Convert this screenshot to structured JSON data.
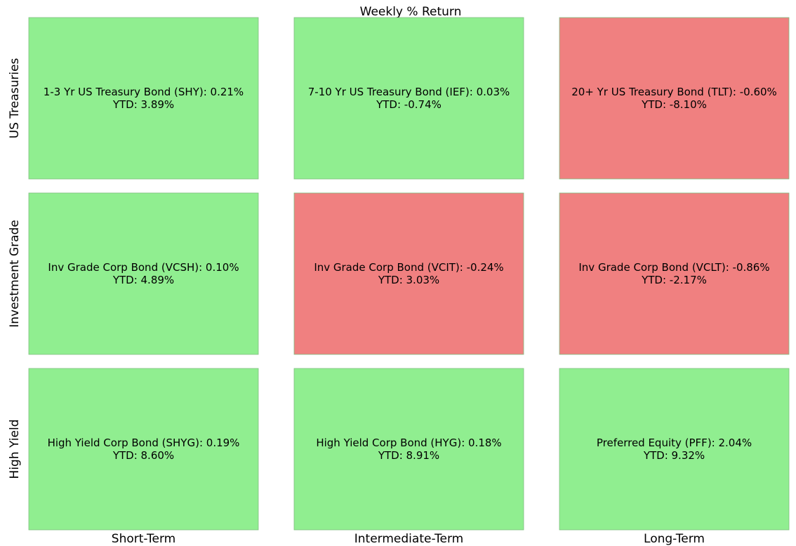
{
  "chart_data": {
    "type": "heatmap",
    "title": "Weekly % Return",
    "columns": [
      "Short-Term",
      "Intermediate-Term",
      "Long-Term"
    ],
    "rows": [
      "US Treasuries",
      "Investment Grade",
      "High Yield"
    ],
    "cells": [
      [
        {
          "label": "1-3 Yr US Treasury Bond (SHY): 0.21%",
          "ytd": "YTD: 3.89%",
          "weekly_return": 0.21,
          "ytd_return": 3.89
        },
        {
          "label": "7-10 Yr US Treasury Bond (IEF): 0.03%",
          "ytd": "YTD: -0.74%",
          "weekly_return": 0.03,
          "ytd_return": -0.74
        },
        {
          "label": "20+ Yr US Treasury Bond (TLT): -0.60%",
          "ytd": "YTD: -8.10%",
          "weekly_return": -0.6,
          "ytd_return": -8.1
        }
      ],
      [
        {
          "label": "Inv Grade Corp Bond (VCSH): 0.10%",
          "ytd": "YTD: 4.89%",
          "weekly_return": 0.1,
          "ytd_return": 4.89
        },
        {
          "label": "Inv Grade Corp Bond (VCIT): -0.24%",
          "ytd": "YTD: 3.03%",
          "weekly_return": -0.24,
          "ytd_return": 3.03
        },
        {
          "label": "Inv Grade Corp Bond (VCLT): -0.86%",
          "ytd": "YTD: -2.17%",
          "weekly_return": -0.86,
          "ytd_return": -2.17
        }
      ],
      [
        {
          "label": "High Yield Corp Bond (SHYG): 0.19%",
          "ytd": "YTD: 8.60%",
          "weekly_return": 0.19,
          "ytd_return": 8.6
        },
        {
          "label": "High Yield Corp Bond (HYG): 0.18%",
          "ytd": "YTD: 8.91%",
          "weekly_return": 0.18,
          "ytd_return": 8.91
        },
        {
          "label": "Preferred Equity (PFF): 2.04%",
          "ytd": "YTD: 9.32%",
          "weekly_return": 2.04,
          "ytd_return": 9.32
        }
      ]
    ],
    "colors": {
      "positive": "#90ee90",
      "negative": "#f08080"
    }
  }
}
